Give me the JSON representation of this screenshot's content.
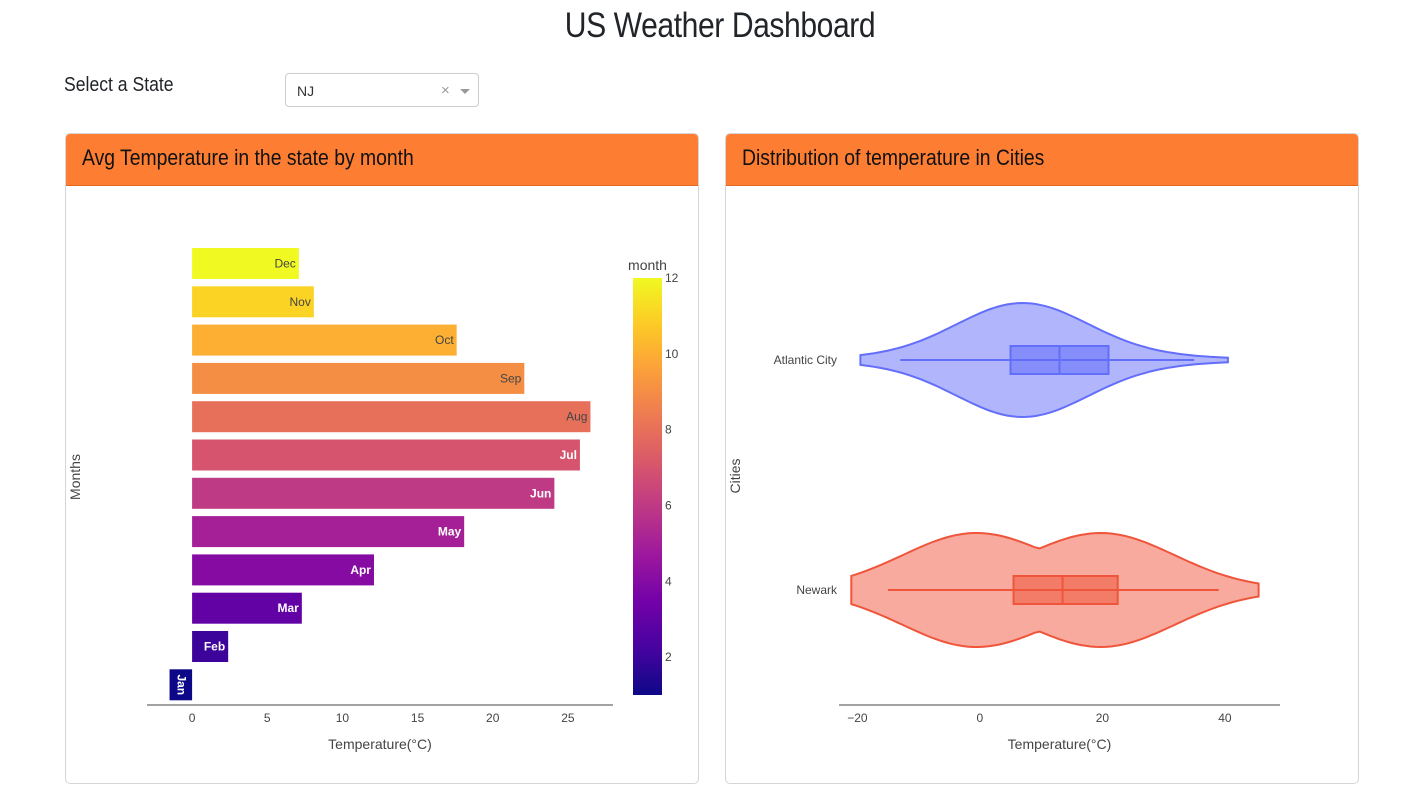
{
  "page": {
    "title": "US Weather Dashboard"
  },
  "filter": {
    "label": "Select a State",
    "selected": "NJ",
    "clear_icon": "×",
    "icons": [
      "clear-icon",
      "chevron-down-icon"
    ]
  },
  "cards": {
    "left": {
      "title": "Avg Temperature in the state by month"
    },
    "right": {
      "title": "Distribution of temperature in Cities"
    }
  },
  "colors": {
    "header": "#fd7e33",
    "atlantic_city": "#636efa",
    "newark": "#ef553b"
  },
  "chart_data": [
    {
      "type": "bar",
      "orientation": "horizontal",
      "categories": [
        "Jan",
        "Feb",
        "Mar",
        "Apr",
        "May",
        "Jun",
        "Jul",
        "Aug",
        "Sep",
        "Oct",
        "Nov",
        "Dec"
      ],
      "values": [
        -1.5,
        2.4,
        7.3,
        12.1,
        18.1,
        24.1,
        25.8,
        26.5,
        22.1,
        17.6,
        8.1,
        7.1
      ],
      "month": [
        1,
        2,
        3,
        4,
        5,
        6,
        7,
        8,
        9,
        10,
        11,
        12
      ],
      "xlabel": "Temperature(°C)",
      "ylabel": "Months",
      "xlim": [
        -3,
        28
      ],
      "xticks": [
        0,
        5,
        10,
        15,
        20,
        25
      ],
      "colorscale": "Plasma",
      "colorbar": {
        "title": "month",
        "range": [
          1,
          12
        ],
        "ticks": [
          2,
          4,
          6,
          8,
          10,
          12
        ]
      },
      "grid": false
    },
    {
      "type": "violin",
      "orientation": "horizontal",
      "xlabel": "Temperature(°C)",
      "ylabel": "Cities",
      "xlim": [
        -23,
        49
      ],
      "xticks": [
        -20,
        0,
        20,
        40
      ],
      "series": [
        {
          "name": "Atlantic City",
          "range": [
            -19.5,
            40.5
          ],
          "box": {
            "q1": 5,
            "median": 13,
            "q3": 21,
            "whisker_low": -13,
            "whisker_high": 35
          }
        },
        {
          "name": "Newark",
          "range": [
            -21,
            45.5
          ],
          "box": {
            "q1": 5.5,
            "median": 13.5,
            "q3": 22.5,
            "whisker_low": -15,
            "whisker_high": 39
          }
        }
      ],
      "grid": false
    }
  ]
}
